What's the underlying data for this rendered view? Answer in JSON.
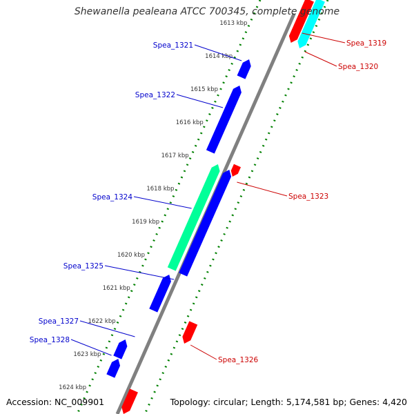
{
  "title": "Shewanella pealeana ATCC 700345, complete genome",
  "footer": {
    "accession_label": "Accession:",
    "accession": "NC_009901",
    "topology_label": "Topology:",
    "topology": "circular",
    "length_label": "Length:",
    "length": "5,174,581 bp",
    "genes_label": "Genes:",
    "genes": "4,420"
  },
  "ruler_ticks": [
    {
      "label": "1613 kbp",
      "value_kbp": 1613
    },
    {
      "label": "1614 kbp",
      "value_kbp": 1614
    },
    {
      "label": "1615 kbp",
      "value_kbp": 1615
    },
    {
      "label": "1616 kbp",
      "value_kbp": 1616
    },
    {
      "label": "1617 kbp",
      "value_kbp": 1617
    },
    {
      "label": "1618 kbp",
      "value_kbp": 1618
    },
    {
      "label": "1619 kbp",
      "value_kbp": 1619
    },
    {
      "label": "1620 kbp",
      "value_kbp": 1620
    },
    {
      "label": "1621 kbp",
      "value_kbp": 1621
    },
    {
      "label": "1622 kbp",
      "value_kbp": 1622
    },
    {
      "label": "1623 kbp",
      "value_kbp": 1623
    },
    {
      "label": "1624 kbp",
      "value_kbp": 1624
    }
  ],
  "genes": [
    {
      "label": "Spea_1319",
      "strand": "forward",
      "color": "#ff0000"
    },
    {
      "label": "Spea_1320",
      "strand": "forward",
      "color": "#00ffff"
    },
    {
      "label": "Spea_1321",
      "strand": "reverse",
      "color": "#0000ff"
    },
    {
      "label": "Spea_1322",
      "strand": "reverse",
      "color": "#0000ff"
    },
    {
      "label": "Spea_1323",
      "strand": "forward",
      "color": "#ff0000"
    },
    {
      "label": "Spea_1324",
      "strand": "reverse",
      "color": "#00ff99"
    },
    {
      "label": "Spea_1325",
      "strand": "reverse",
      "color": "#0000ff"
    },
    {
      "label": "Spea_1326",
      "strand": "forward",
      "color": "#ff0000"
    },
    {
      "label": "Spea_1327",
      "strand": "reverse",
      "color": "#0000ff"
    },
    {
      "label": "Spea_1328",
      "strand": "reverse",
      "color": "#0000ff"
    }
  ],
  "colors": {
    "backbone": "#808080",
    "ruler": "#008000",
    "forward_label": "#cc0000",
    "reverse_label": "#0000cc"
  }
}
